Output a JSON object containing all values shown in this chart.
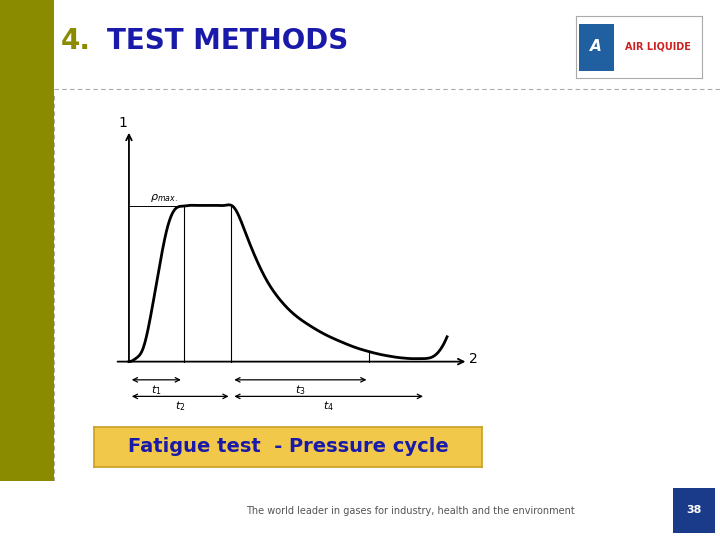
{
  "title_number": "4.",
  "title_text": "TEST METHODS",
  "title_number_color": "#8B8B00",
  "title_text_color": "#1a1aaa",
  "bg_color": "#ffffff",
  "left_bar_color": "#8B8B00",
  "dashed_border_color": "#aaaaaa",
  "footer_text": "The world leader in gases for industry, health and the environment",
  "footer_number": "38",
  "footer_bg": "#1a3a8a",
  "caption_text": "Fatigue test  - Pressure cycle",
  "caption_bg": "#F2C84B",
  "caption_border": "#C8A020",
  "caption_text_color": "#1a1aaa",
  "curve_color": "#000000",
  "title_fontsize": 20,
  "diagram_bg": "#ffffff",
  "logo_blue": "#2060A0",
  "logo_red": "#CC2222"
}
